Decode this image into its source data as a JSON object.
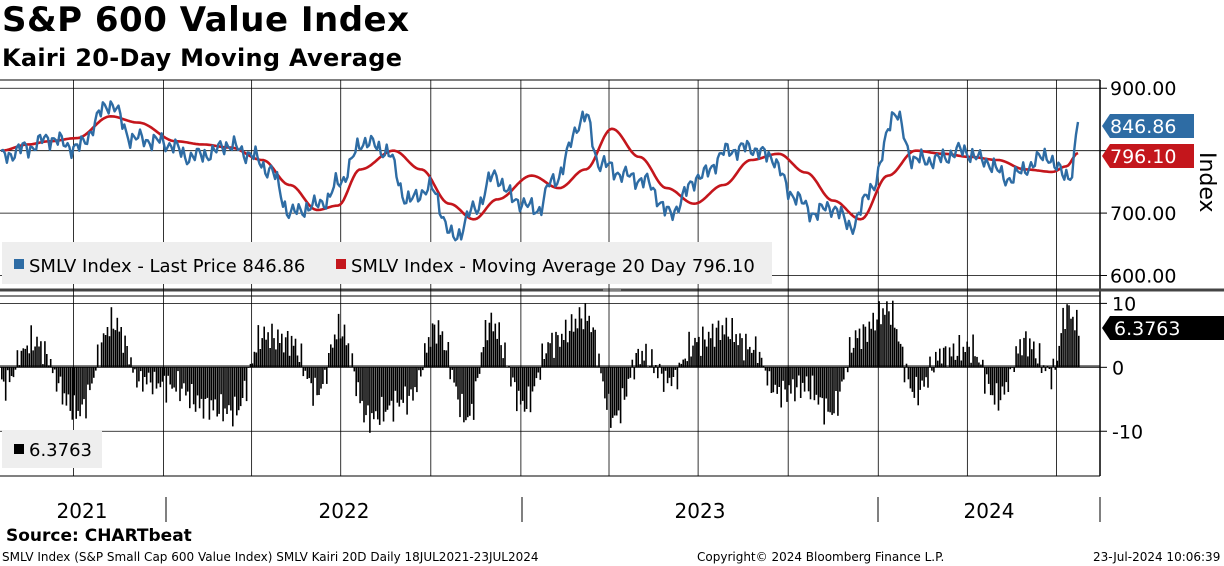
{
  "title": "S&P 600 Value Index",
  "subtitle": "Kairi 20-Day Moving Average",
  "source": "Source: CHARTbeat",
  "footer": {
    "left": "SMLV Index (S&P Small Cap 600 Value Index) SMLV Kairi 20D  Daily 18JUL2021-23JUL2024",
    "middle": "Copyright© 2024 Bloomberg Finance L.P.",
    "right": "23-Jul-2024 10:06:39"
  },
  "colors": {
    "price": "#2e6ca4",
    "ma": "#c4161c",
    "kairi": "#000000",
    "legend_bg": "#eeeeee"
  },
  "chart_data": [
    {
      "type": "line",
      "panel": "upper",
      "ylabel": "Index",
      "ylim": [
        580,
        910
      ],
      "yticks": [
        "900.00",
        "700.00",
        "600.00"
      ],
      "x_period": [
        "2021-07-18",
        "2024-07-23"
      ],
      "year_labels": [
        "2021",
        "2022",
        "2023",
        "2024"
      ],
      "last_values": {
        "price": "846.86",
        "ma": "796.10"
      },
      "legend": [
        "SMLV Index - Last Price 846.86",
        "SMLV Index - Moving Average 20 Day 796.10"
      ],
      "series": [
        {
          "name": "SMLV Index - Last Price",
          "x": [
            "2021-07-19",
            "2021-08-16",
            "2021-09-06",
            "2021-10-04",
            "2021-11-08",
            "2021-11-30",
            "2021-12-27",
            "2022-01-07",
            "2022-01-27",
            "2022-02-17",
            "2022-03-07",
            "2022-03-29",
            "2022-04-19",
            "2022-05-11",
            "2022-06-01",
            "2022-06-16",
            "2022-06-29",
            "2022-07-25",
            "2022-08-16",
            "2022-09-08",
            "2022-09-30",
            "2022-10-25",
            "2022-11-14",
            "2022-12-05",
            "2022-12-27",
            "2023-01-18",
            "2023-02-02",
            "2023-03-08",
            "2023-03-22",
            "2023-04-19",
            "2023-05-09",
            "2023-06-01",
            "2023-07-04",
            "2023-08-01",
            "2023-08-22",
            "2023-09-14",
            "2023-10-05",
            "2023-10-27",
            "2023-11-14",
            "2023-12-05",
            "2023-12-27",
            "2024-01-17",
            "2024-02-07",
            "2024-02-28",
            "2024-03-27",
            "2024-04-17",
            "2024-05-14",
            "2024-06-04",
            "2024-06-20",
            "2024-07-02",
            "2024-07-17",
            "2024-07-23"
          ],
          "values": [
            790,
            805,
            820,
            805,
            875,
            820,
            815,
            810,
            790,
            795,
            810,
            795,
            770,
            700,
            710,
            720,
            750,
            815,
            800,
            720,
            740,
            660,
            705,
            760,
            720,
            705,
            750,
            855,
            780,
            760,
            750,
            700,
            760,
            800,
            805,
            790,
            730,
            700,
            710,
            680,
            745,
            860,
            785,
            785,
            800,
            785,
            755,
            775,
            795,
            770,
            760,
            846.86
          ]
        },
        {
          "name": "SMLV Index - Moving Average 20 Day",
          "x": [
            "2021-07-19",
            "2021-08-16",
            "2021-09-06",
            "2021-10-04",
            "2021-11-08",
            "2021-12-06",
            "2022-01-14",
            "2022-02-10",
            "2022-03-10",
            "2022-04-12",
            "2022-05-10",
            "2022-06-07",
            "2022-06-28",
            "2022-07-21",
            "2022-08-24",
            "2022-09-21",
            "2022-10-20",
            "2022-11-14",
            "2022-12-08",
            "2023-01-12",
            "2023-02-09",
            "2023-03-08",
            "2023-04-04",
            "2023-05-02",
            "2023-05-30",
            "2023-06-27",
            "2023-07-27",
            "2023-08-24",
            "2023-09-21",
            "2023-10-19",
            "2023-11-16",
            "2023-12-14",
            "2024-01-11",
            "2024-02-08",
            "2024-03-07",
            "2024-04-04",
            "2024-05-02",
            "2024-05-30",
            "2024-06-27",
            "2024-07-11",
            "2024-07-23"
          ],
          "values": [
            800,
            810,
            815,
            820,
            855,
            845,
            815,
            810,
            805,
            785,
            745,
            705,
            712,
            770,
            800,
            770,
            715,
            690,
            722,
            760,
            740,
            770,
            835,
            790,
            740,
            715,
            745,
            785,
            795,
            765,
            720,
            690,
            760,
            800,
            795,
            790,
            785,
            770,
            766,
            775,
            796.1
          ]
        }
      ]
    },
    {
      "type": "bar",
      "panel": "lower",
      "series_name": "SMLV Kairi 20D",
      "ylim": [
        -17,
        11
      ],
      "yticks": [
        "10",
        "0",
        "-10"
      ],
      "last_value": "6.3763",
      "legend": [
        "6.3763"
      ],
      "x": [
        "2021-07-19",
        "2021-08-20",
        "2021-10-05",
        "2021-11-10",
        "2021-12-08",
        "2022-01-13",
        "2022-02-09",
        "2022-03-14",
        "2022-04-12",
        "2022-05-10",
        "2022-06-06",
        "2022-06-29",
        "2022-07-29",
        "2022-09-07",
        "2022-10-06",
        "2022-11-07",
        "2022-11-30",
        "2023-01-04",
        "2023-02-01",
        "2023-03-08",
        "2023-04-05",
        "2023-05-03",
        "2023-06-01",
        "2023-06-29",
        "2023-07-27",
        "2023-08-24",
        "2023-09-21",
        "2023-10-18",
        "2023-11-13",
        "2023-12-11",
        "2024-01-10",
        "2024-02-07",
        "2024-03-06",
        "2024-04-03",
        "2024-05-01",
        "2024-05-29",
        "2024-06-26",
        "2024-07-11",
        "2024-07-23"
      ],
      "values": [
        -3,
        4,
        -7,
        7,
        -2,
        -3,
        -6,
        -7,
        5,
        4,
        -4,
        6,
        -8,
        -5,
        6,
        -8,
        7,
        -6,
        4,
        8,
        -8,
        2,
        -2,
        4,
        6,
        3,
        -4,
        -3,
        -7,
        5,
        9,
        -4,
        2,
        3,
        -5,
        4,
        -1,
        9,
        6.3763
      ]
    }
  ]
}
